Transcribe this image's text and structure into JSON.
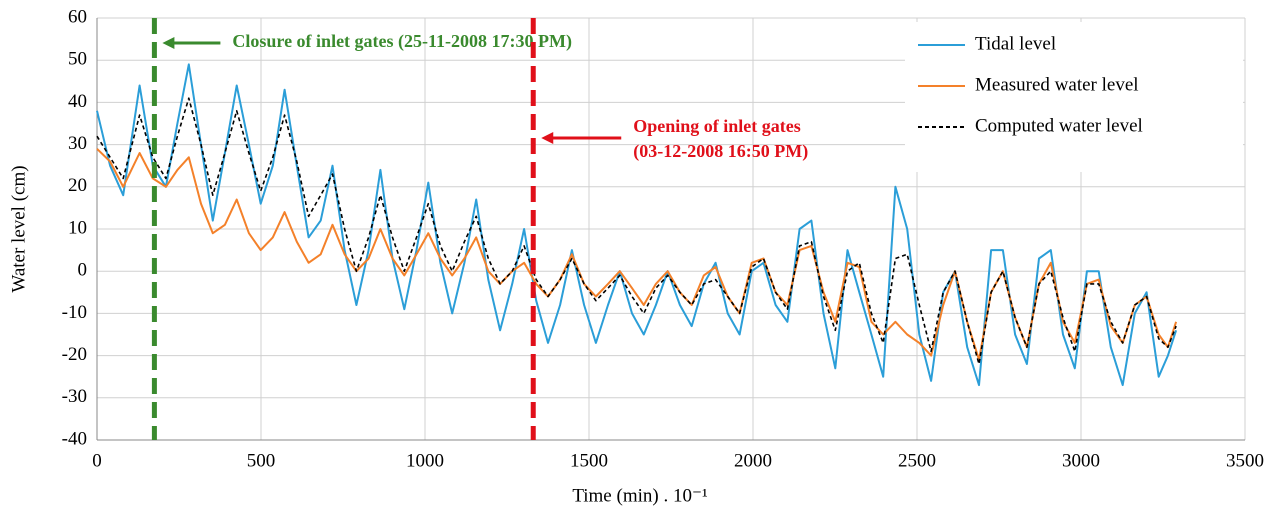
{
  "chart_data": {
    "type": "line",
    "xlabel": "Time (min) . 10⁻¹",
    "ylabel": "Water level (cm)",
    "xlim": [
      0,
      3500
    ],
    "xticks": [
      0,
      500,
      1000,
      1500,
      2000,
      2500,
      3000,
      3500
    ],
    "ylim": [
      -40,
      60
    ],
    "yticks": [
      -40,
      -30,
      -20,
      -10,
      0,
      10,
      20,
      30,
      40,
      50,
      60
    ],
    "grid": true,
    "legend": "upper right",
    "x": [
      0,
      40,
      80,
      130,
      170,
      210,
      245,
      280,
      317,
      353,
      390,
      426,
      463,
      499,
      536,
      572,
      609,
      645,
      682,
      718,
      755,
      791,
      828,
      864,
      901,
      937,
      974,
      1010,
      1047,
      1083,
      1120,
      1156,
      1193,
      1229,
      1266,
      1302,
      1339,
      1375,
      1412,
      1448,
      1485,
      1521,
      1558,
      1594,
      1631,
      1667,
      1704,
      1740,
      1777,
      1813,
      1850,
      1886,
      1923,
      1959,
      1996,
      2032,
      2069,
      2105,
      2142,
      2178,
      2215,
      2251,
      2288,
      2324,
      2361,
      2397,
      2434,
      2470,
      2507,
      2543,
      2580,
      2616,
      2653,
      2689,
      2726,
      2762,
      2799,
      2835,
      2872,
      2908,
      2945,
      2981,
      3018,
      3054,
      3091,
      3127,
      3164,
      3200,
      3237,
      3265,
      3290
    ],
    "series": [
      {
        "name": "Tidal level",
        "color": "#2b9ed8",
        "dashed": false,
        "values": [
          38,
          25,
          18,
          44,
          25,
          20,
          35,
          49,
          30,
          12,
          28,
          44,
          30,
          16,
          25,
          43,
          25,
          8,
          12,
          25,
          5,
          -8,
          5,
          24,
          3,
          -9,
          5,
          21,
          2,
          -10,
          2,
          17,
          -2,
          -14,
          -3,
          10,
          -7,
          -17,
          -8,
          5,
          -8,
          -17,
          -8,
          0,
          -10,
          -15,
          -8,
          0,
          -8,
          -13,
          -3,
          2,
          -10,
          -15,
          0,
          2,
          -8,
          -12,
          10,
          12,
          -10,
          -23,
          5,
          -5,
          -15,
          -25,
          20,
          10,
          -15,
          -26,
          -5,
          0,
          -18,
          -27,
          5,
          5,
          -15,
          -22,
          3,
          5,
          -15,
          -23,
          0,
          0,
          -18,
          -27,
          -10,
          -5,
          -25,
          -20,
          -14
        ]
      },
      {
        "name": "Measured water level",
        "color": "#f4812a",
        "dashed": false,
        "values": [
          29,
          26,
          20,
          28,
          22,
          20,
          24,
          27,
          16,
          9,
          11,
          17,
          9,
          5,
          8,
          14,
          7,
          2,
          4,
          11,
          4,
          0,
          3,
          10,
          3,
          -1,
          4,
          9,
          3,
          -1,
          3,
          8,
          0,
          -3,
          0,
          2,
          -3,
          -6,
          -2,
          4,
          -3,
          -6,
          -3,
          0,
          -4,
          -8,
          -3,
          0,
          -5,
          -8,
          -1,
          1,
          -6,
          -10,
          2,
          3,
          -5,
          -8,
          5,
          6,
          -5,
          -12,
          2,
          1,
          -12,
          -15,
          -12,
          -15,
          -17,
          -20,
          -8,
          0,
          -12,
          -21,
          -5,
          0,
          -11,
          -18,
          -3,
          2,
          -12,
          -17,
          -3,
          -2,
          -13,
          -17,
          -8,
          -6,
          -15,
          -18,
          -12
        ]
      },
      {
        "name": "Computed water level",
        "color": "#000000",
        "dashed": true,
        "values": [
          32,
          27,
          22,
          37,
          27,
          22,
          32,
          41,
          30,
          18,
          28,
          38,
          28,
          19,
          27,
          37,
          26,
          13,
          18,
          23,
          10,
          0,
          8,
          18,
          8,
          0,
          8,
          16,
          6,
          0,
          7,
          13,
          3,
          -3,
          0,
          6,
          -2,
          -6,
          -2,
          3,
          -3,
          -7,
          -4,
          -1,
          -6,
          -10,
          -4,
          -1,
          -5,
          -8,
          -3,
          -2,
          -6,
          -10,
          1,
          3,
          -5,
          -9,
          6,
          7,
          -6,
          -14,
          0,
          2,
          -10,
          -17,
          3,
          4,
          -8,
          -19,
          -5,
          0,
          -12,
          -22,
          -5,
          0,
          -11,
          -18,
          -3,
          0,
          -11,
          -19,
          -3,
          -3,
          -12,
          -17,
          -8,
          -6,
          -16,
          -18,
          -13
        ]
      }
    ],
    "events": [
      {
        "x": 175,
        "color": "#3a8a2e",
        "label": [
          "Closure of inlet gates (25-11-2008 17:30 PM)"
        ]
      },
      {
        "x": 1330,
        "color": "#e0101a",
        "label": [
          "Opening of inlet gates",
          "(03-12-2008 16:50 PM)"
        ]
      }
    ]
  }
}
